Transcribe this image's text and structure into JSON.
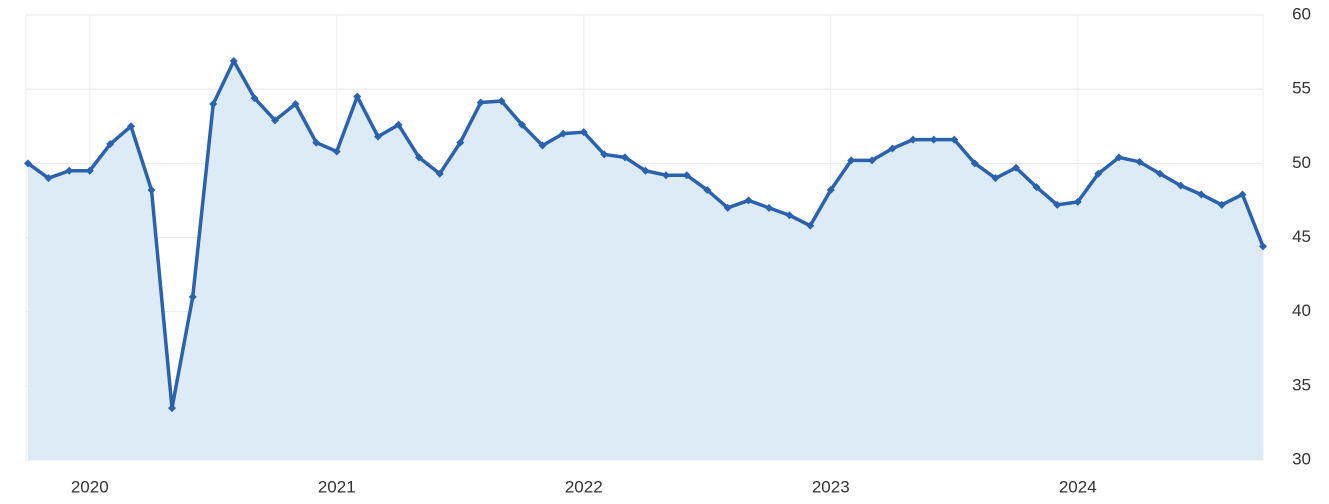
{
  "chart_data": {
    "type": "line",
    "x": [
      2019.75,
      2019.833,
      2019.917,
      2020,
      2020.083,
      2020.167,
      2020.25,
      2020.333,
      2020.417,
      2020.5,
      2020.583,
      2020.667,
      2020.75,
      2020.833,
      2020.917,
      2021,
      2021.083,
      2021.167,
      2021.25,
      2021.333,
      2021.417,
      2021.5,
      2021.583,
      2021.667,
      2021.75,
      2021.833,
      2021.917,
      2022,
      2022.083,
      2022.167,
      2022.25,
      2022.333,
      2022.417,
      2022.5,
      2022.583,
      2022.667,
      2022.75,
      2022.833,
      2022.917,
      2023,
      2023.083,
      2023.167,
      2023.25,
      2023.333,
      2023.417,
      2023.5,
      2023.583,
      2023.667,
      2023.75,
      2023.833,
      2023.917,
      2024,
      2024.083,
      2024.167,
      2024.25,
      2024.333,
      2024.417,
      2024.5,
      2024.583,
      2024.667,
      2024.75
    ],
    "series": [
      {
        "color": "#2a62ad",
        "values": [
          50.0,
          49.0,
          49.5,
          49.5,
          51.3,
          52.5,
          48.2,
          33.5,
          41.0,
          54.0,
          56.9,
          54.4,
          52.9,
          54.0,
          51.4,
          50.8,
          54.5,
          51.8,
          52.6,
          50.4,
          49.3,
          51.4,
          54.1,
          54.2,
          52.6,
          51.2,
          52.0,
          52.1,
          50.6,
          50.4,
          49.5,
          49.2,
          49.2,
          48.2,
          47.0,
          47.5,
          47.0,
          46.5,
          45.8,
          48.2,
          50.2,
          50.2,
          51.0,
          51.6,
          51.6,
          51.6,
          50.0,
          49.0,
          49.7,
          48.4,
          47.2,
          47.4,
          49.3,
          50.4,
          50.1,
          49.3,
          48.5,
          47.9,
          47.2,
          47.9,
          44.4
        ]
      }
    ],
    "fill": "#ddebf7",
    "xlim": [
      2019.75,
      2024.75
    ],
    "xticks": [
      2020,
      2021,
      2022,
      2023,
      2024
    ],
    "ylim": [
      30,
      60
    ],
    "yticks": [
      30,
      35,
      40,
      45,
      50,
      55,
      60
    ],
    "grid": true
  }
}
